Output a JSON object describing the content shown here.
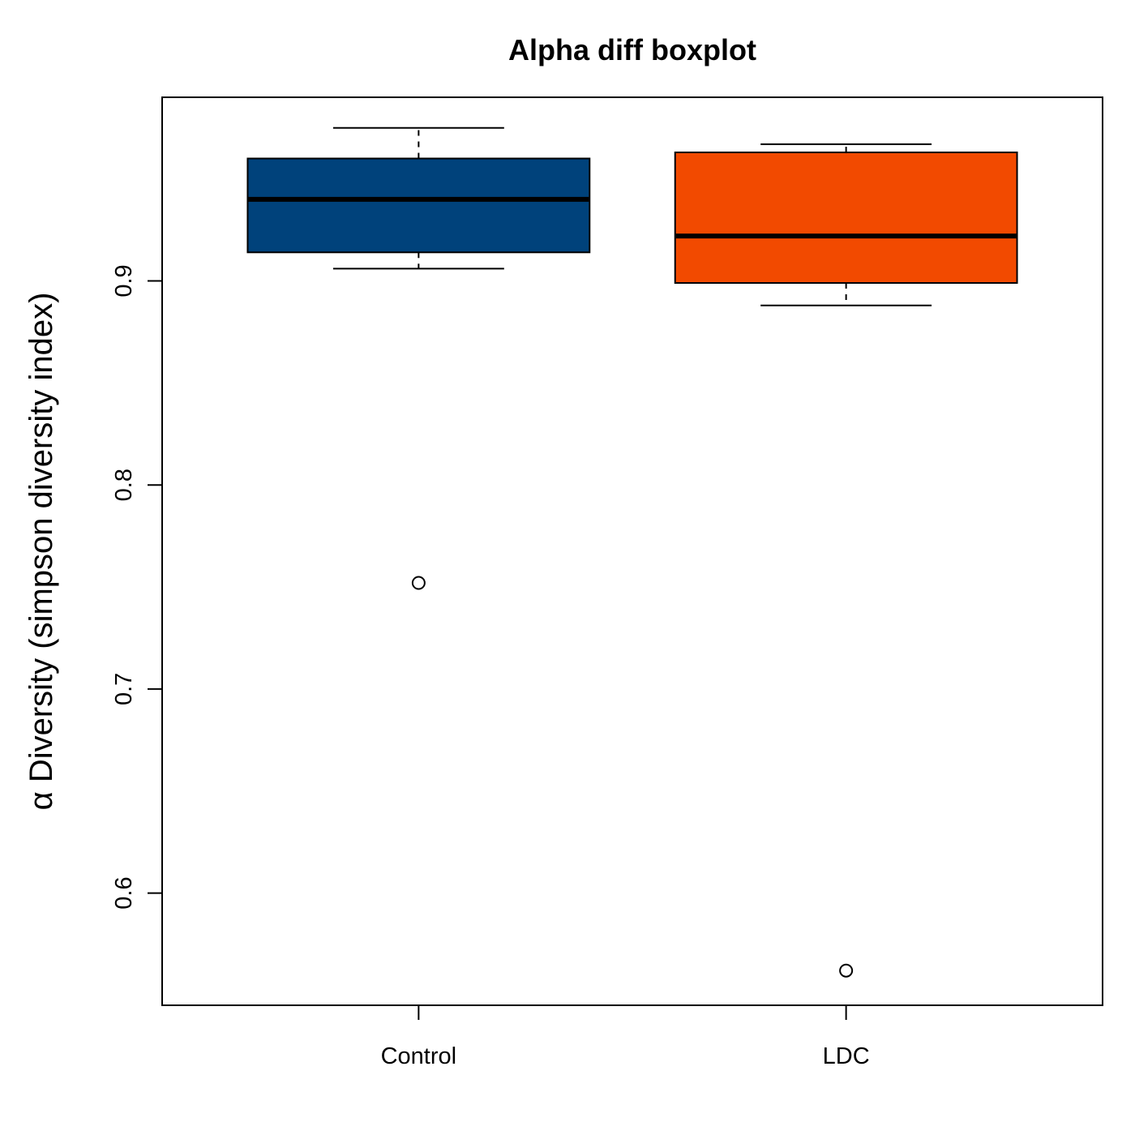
{
  "chart_data": {
    "type": "boxplot",
    "title": "Alpha diff boxplot",
    "xlabel": "",
    "ylabel": "α Diversity (simpson diversity index)",
    "ylim": [
      0.545,
      0.99
    ],
    "yticks": [
      0.6,
      0.7,
      0.8,
      0.9
    ],
    "ytick_labels": [
      "0.6",
      "0.7",
      "0.8",
      "0.9"
    ],
    "categories": [
      "Control",
      "LDC"
    ],
    "grid": false,
    "legend": "none",
    "boxes": [
      {
        "name": "Control",
        "color": "#00427b",
        "whisker_low": 0.906,
        "q1": 0.914,
        "median": 0.94,
        "q3": 0.96,
        "whisker_high": 0.975,
        "outliers": [
          0.752
        ]
      },
      {
        "name": "LDC",
        "color": "#f24a00",
        "whisker_low": 0.888,
        "q1": 0.899,
        "median": 0.922,
        "q3": 0.963,
        "whisker_high": 0.967,
        "outliers": [
          0.562
        ]
      }
    ]
  }
}
